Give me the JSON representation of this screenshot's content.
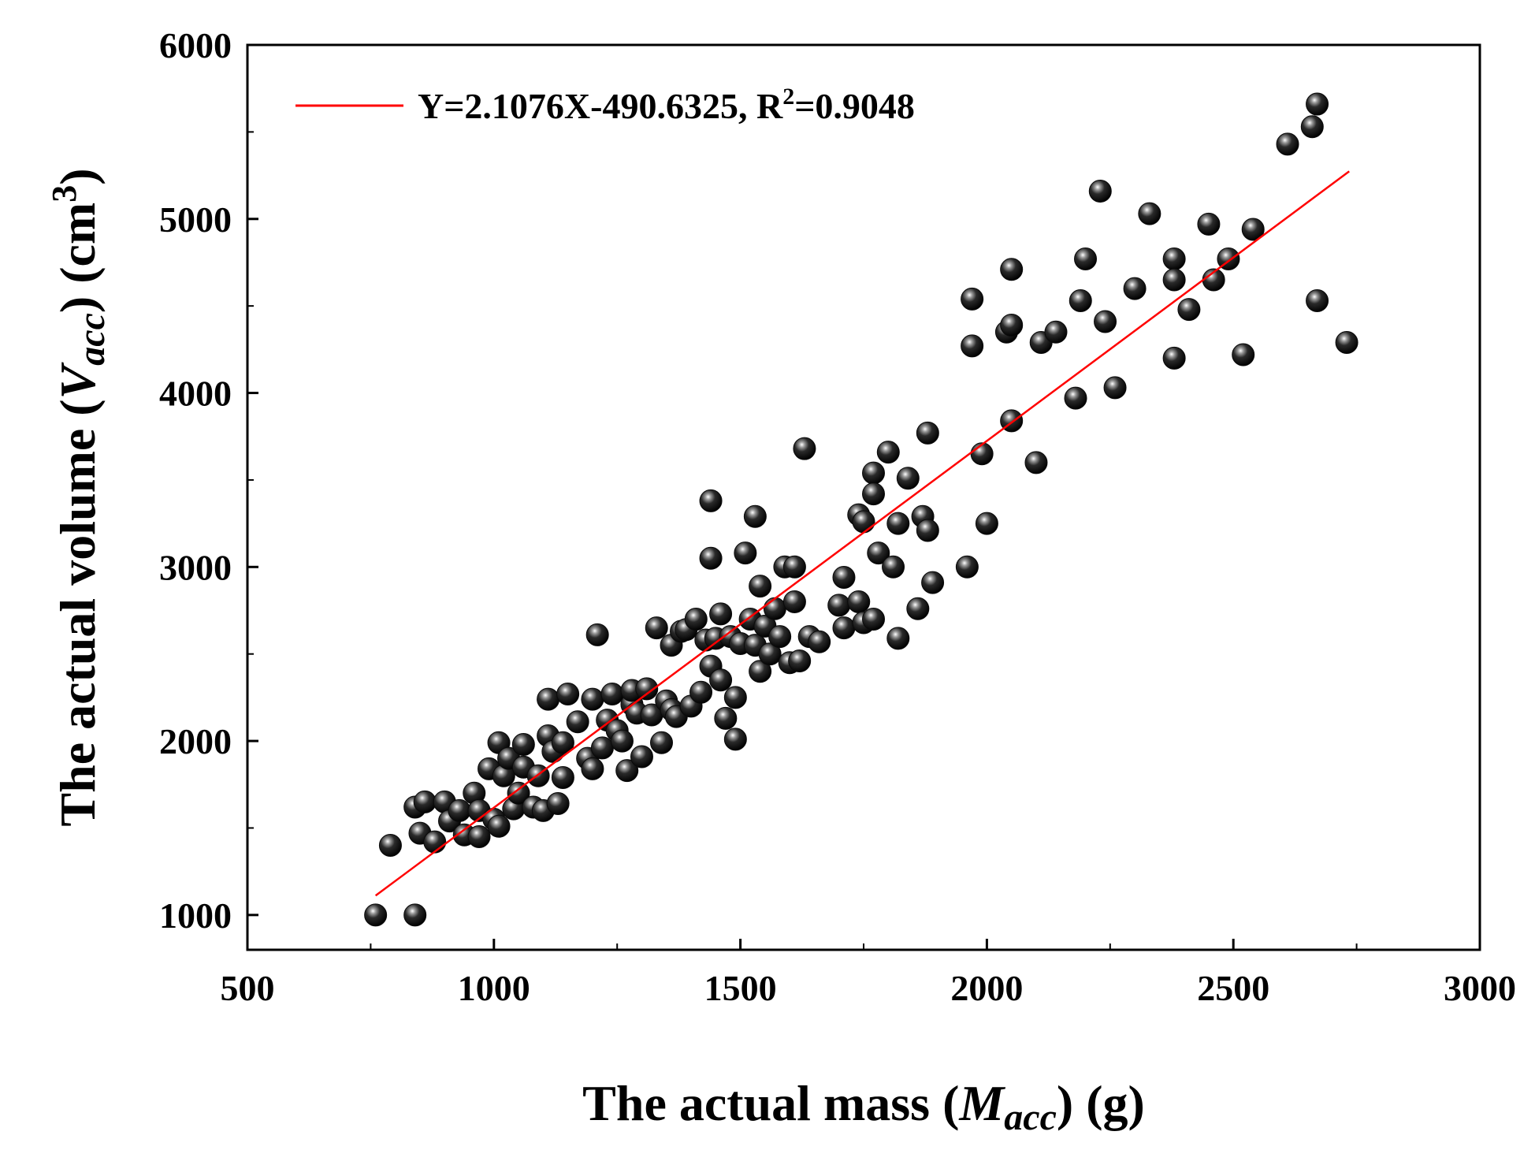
{
  "chart_data": {
    "type": "scatter",
    "xlabel": {
      "prefix": "The actual mass (",
      "var": "M",
      "sub": "acc",
      "suffix": ") (g)"
    },
    "ylabel": {
      "prefix": "The actual volume (",
      "var": "V",
      "sub": "acc",
      "suffix": ") (cm",
      "sup": "3",
      "close": ")"
    },
    "xlim": [
      500,
      3000
    ],
    "ylim": [
      800,
      6000
    ],
    "xticks": [
      "500",
      "1000",
      "1500",
      "2000",
      "2500",
      "3000"
    ],
    "yticks": [
      "1000",
      "2000",
      "3000",
      "4000",
      "5000",
      "6000"
    ],
    "grid": false,
    "legend": {
      "placement": "top-left",
      "text_main": "Y=2.1076X-490.6325, R",
      "text_sup": "2",
      "text_tail": "=0.9048"
    },
    "fit": {
      "slope": 2.1076,
      "intercept": -490.6325,
      "x_range": [
        760,
        2735
      ],
      "color": "#ff0000"
    },
    "marker_color": "#0a0a0a",
    "points": [
      [
        760,
        1000
      ],
      [
        840,
        1000
      ],
      [
        790,
        1400
      ],
      [
        840,
        1620
      ],
      [
        860,
        1650
      ],
      [
        850,
        1470
      ],
      [
        880,
        1420
      ],
      [
        900,
        1650
      ],
      [
        910,
        1540
      ],
      [
        930,
        1600
      ],
      [
        940,
        1460
      ],
      [
        960,
        1700
      ],
      [
        970,
        1600
      ],
      [
        970,
        1450
      ],
      [
        990,
        1840
      ],
      [
        1000,
        1550
      ],
      [
        1010,
        1510
      ],
      [
        1010,
        1990
      ],
      [
        1020,
        1800
      ],
      [
        1030,
        1900
      ],
      [
        1040,
        1610
      ],
      [
        1050,
        1700
      ],
      [
        1060,
        1850
      ],
      [
        1060,
        1980
      ],
      [
        1080,
        1620
      ],
      [
        1090,
        1800
      ],
      [
        1100,
        1600
      ],
      [
        1110,
        2030
      ],
      [
        1120,
        1940
      ],
      [
        1130,
        1640
      ],
      [
        1140,
        1790
      ],
      [
        1110,
        2240
      ],
      [
        1140,
        1990
      ],
      [
        1150,
        2270
      ],
      [
        1170,
        2110
      ],
      [
        1190,
        1900
      ],
      [
        1200,
        1840
      ],
      [
        1200,
        2240
      ],
      [
        1210,
        2610
      ],
      [
        1220,
        1960
      ],
      [
        1230,
        2120
      ],
      [
        1240,
        2270
      ],
      [
        1250,
        2060
      ],
      [
        1260,
        2000
      ],
      [
        1270,
        1830
      ],
      [
        1280,
        2210
      ],
      [
        1280,
        2290
      ],
      [
        1290,
        2160
      ],
      [
        1300,
        1910
      ],
      [
        1310,
        2300
      ],
      [
        1320,
        2150
      ],
      [
        1330,
        2650
      ],
      [
        1340,
        1990
      ],
      [
        1350,
        2230
      ],
      [
        1360,
        2180
      ],
      [
        1360,
        2550
      ],
      [
        1370,
        2140
      ],
      [
        1380,
        2630
      ],
      [
        1390,
        2640
      ],
      [
        1400,
        2200
      ],
      [
        1410,
        2700
      ],
      [
        1420,
        2280
      ],
      [
        1430,
        2580
      ],
      [
        1440,
        3380
      ],
      [
        1440,
        3050
      ],
      [
        1440,
        2430
      ],
      [
        1450,
        2590
      ],
      [
        1460,
        2350
      ],
      [
        1460,
        2730
      ],
      [
        1470,
        2130
      ],
      [
        1480,
        2600
      ],
      [
        1490,
        2250
      ],
      [
        1490,
        2010
      ],
      [
        1500,
        2560
      ],
      [
        1510,
        3080
      ],
      [
        1520,
        2700
      ],
      [
        1530,
        2550
      ],
      [
        1530,
        3290
      ],
      [
        1540,
        2890
      ],
      [
        1540,
        2400
      ],
      [
        1550,
        2660
      ],
      [
        1560,
        2500
      ],
      [
        1570,
        2760
      ],
      [
        1580,
        2600
      ],
      [
        1590,
        3000
      ],
      [
        1600,
        2450
      ],
      [
        1610,
        3000
      ],
      [
        1610,
        2800
      ],
      [
        1620,
        2460
      ],
      [
        1630,
        3680
      ],
      [
        1640,
        2600
      ],
      [
        1660,
        2570
      ],
      [
        1700,
        2780
      ],
      [
        1710,
        2650
      ],
      [
        1710,
        2940
      ],
      [
        1740,
        3300
      ],
      [
        1740,
        2800
      ],
      [
        1750,
        3260
      ],
      [
        1750,
        2680
      ],
      [
        1770,
        3540
      ],
      [
        1770,
        3420
      ],
      [
        1770,
        2700
      ],
      [
        1780,
        3080
      ],
      [
        1800,
        3660
      ],
      [
        1810,
        3000
      ],
      [
        1820,
        3250
      ],
      [
        1820,
        2590
      ],
      [
        1840,
        3510
      ],
      [
        1860,
        2760
      ],
      [
        1870,
        3290
      ],
      [
        1880,
        3770
      ],
      [
        1880,
        3210
      ],
      [
        1890,
        2910
      ],
      [
        1960,
        3000
      ],
      [
        1970,
        4270
      ],
      [
        1970,
        4540
      ],
      [
        1990,
        3650
      ],
      [
        2000,
        3250
      ],
      [
        2040,
        4350
      ],
      [
        2050,
        4710
      ],
      [
        2050,
        3840
      ],
      [
        2050,
        4390
      ],
      [
        2100,
        3600
      ],
      [
        2110,
        4290
      ],
      [
        2140,
        4350
      ],
      [
        2180,
        3970
      ],
      [
        2190,
        4530
      ],
      [
        2200,
        4770
      ],
      [
        2230,
        5160
      ],
      [
        2240,
        4410
      ],
      [
        2260,
        4030
      ],
      [
        2300,
        4600
      ],
      [
        2330,
        5030
      ],
      [
        2380,
        4770
      ],
      [
        2380,
        4650
      ],
      [
        2380,
        4200
      ],
      [
        2410,
        4480
      ],
      [
        2450,
        4970
      ],
      [
        2460,
        4650
      ],
      [
        2490,
        4770
      ],
      [
        2520,
        4220
      ],
      [
        2540,
        4940
      ],
      [
        2610,
        5430
      ],
      [
        2660,
        5530
      ],
      [
        2670,
        5660
      ],
      [
        2670,
        4530
      ],
      [
        2730,
        4290
      ]
    ]
  }
}
